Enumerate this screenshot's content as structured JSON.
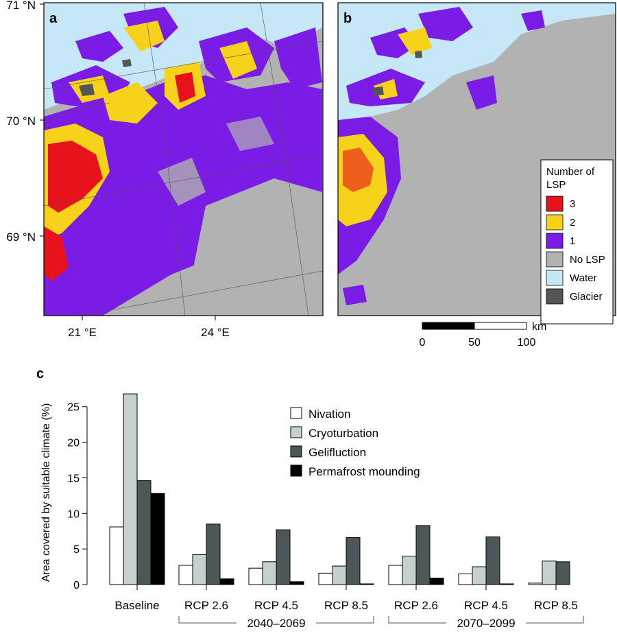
{
  "maps": {
    "panel_a_label": "a",
    "panel_b_label": "b",
    "lat_labels": [
      "71 °N",
      "70 °N",
      "69 °N"
    ],
    "lon_labels": [
      "21 °E",
      "24 °E"
    ],
    "legend": {
      "title_line1": "Number of",
      "title_line2": "LSP",
      "items": [
        {
          "label": "3",
          "color": "#e8121c"
        },
        {
          "label": "2",
          "color": "#f6d21a"
        },
        {
          "label": "1",
          "color": "#7a1be6"
        },
        {
          "label": "No LSP",
          "color": "#b2b2b2"
        },
        {
          "label": "Water",
          "color": "#c6e7f7"
        },
        {
          "label": "Glacier",
          "color": "#555555"
        }
      ]
    },
    "scale_bar": {
      "unit": "km",
      "ticks": [
        "0",
        "50",
        "100"
      ]
    }
  },
  "chart_data": {
    "type": "bar",
    "panel_label": "c",
    "ylabel": "Area covered by suitable climate (%)",
    "ylim": [
      0,
      27
    ],
    "yticks": [
      0,
      5,
      10,
      15,
      20,
      25
    ],
    "categories": [
      "Baseline",
      "RCP 2.6",
      "RCP 4.5",
      "RCP 8.5",
      "RCP 2.6",
      "RCP 4.5",
      "RCP 8.5"
    ],
    "period_groups": [
      {
        "label": "2040–2069",
        "from": 1,
        "to": 3
      },
      {
        "label": "2070–2099",
        "from": 4,
        "to": 6
      }
    ],
    "series": [
      {
        "name": "Nivation",
        "color": "#ffffff",
        "values": [
          8.1,
          2.7,
          2.3,
          1.6,
          2.7,
          1.5,
          0.2
        ]
      },
      {
        "name": "Cryoturbation",
        "color": "#c6d1cf",
        "values": [
          26.8,
          4.2,
          3.2,
          2.6,
          4.0,
          2.5,
          3.3
        ]
      },
      {
        "name": "Gelifluction",
        "color": "#4e5758",
        "values": [
          14.6,
          8.5,
          7.7,
          6.6,
          8.3,
          6.7,
          3.2
        ]
      },
      {
        "name": "Permafrost mounding",
        "color": "#000000",
        "values": [
          12.8,
          0.8,
          0.4,
          0.1,
          0.9,
          0.1,
          0.0
        ]
      }
    ],
    "legend_position": "top-right"
  }
}
